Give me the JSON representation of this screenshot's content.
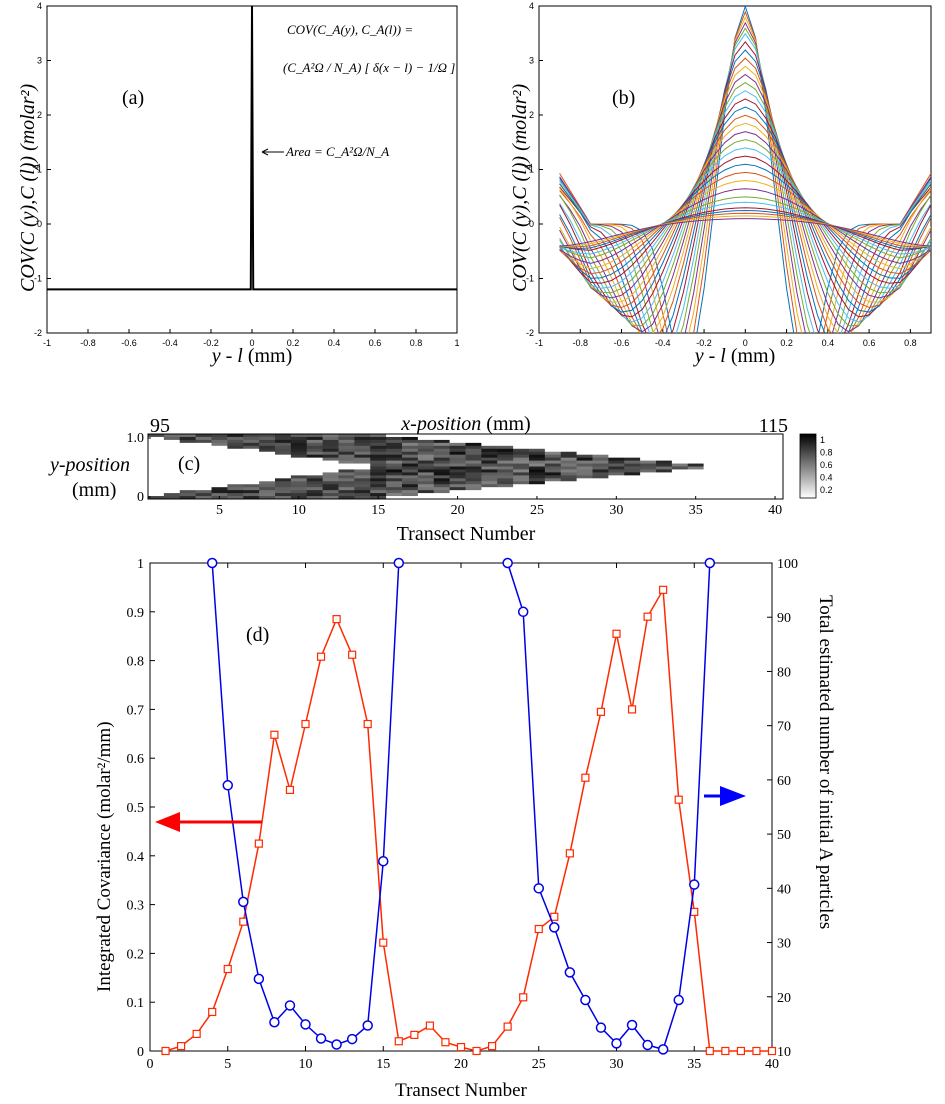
{
  "chart_data": [
    {
      "panel": "(a)",
      "type": "line",
      "xlabel_var": "y - l",
      "xlabel_unit": "(mm)",
      "ylabel": "COV(C (y),C (l)) (molar²)",
      "ylabel_sub": "A",
      "xlim": [
        -1,
        1
      ],
      "ylim": [
        -2,
        4
      ],
      "xticks": [
        "-1",
        "-0.8",
        "-0.6",
        "-0.4",
        "-0.2",
        "0",
        "0.2",
        "0.4",
        "0.6",
        "0.8",
        "1"
      ],
      "yticks": [
        "-2",
        "-1",
        "0",
        "1",
        "2",
        "3",
        "4"
      ],
      "baseline": -1.2,
      "spike_x": 0,
      "spike_peak": 4,
      "formula_lines": [
        "COV(C_A(y), C_A(l)) =",
        "(C_A²Ω / N_A) [ δ(x − l) − 1/Ω ]"
      ],
      "annotation": "Area = C_A²Ω/N_A",
      "line_color": "#000000"
    },
    {
      "panel": "(b)",
      "type": "line",
      "xlabel_var": "y - l",
      "xlabel_unit": "(mm)",
      "ylabel": "COV(C (y),C (l)) (molar²)",
      "ylabel_sub": "A",
      "xlim": [
        -1,
        1
      ],
      "ylim": [
        -2,
        4
      ],
      "xticks": [
        "-1",
        "-0.8",
        "-0.6",
        "-0.4",
        "-0.2",
        "0",
        "0.2",
        "0.4",
        "0.6",
        "0.8"
      ],
      "yticks": [
        "-2",
        "-1",
        "0",
        "1",
        "2",
        "3",
        "4"
      ],
      "x_range_data": [
        -0.9,
        0.9
      ],
      "series_peaks": [
        4.0,
        3.9,
        3.8,
        3.7,
        3.6,
        3.5,
        3.35,
        3.2,
        3.05,
        2.9,
        2.75,
        2.6,
        2.45,
        2.3,
        2.15,
        2.0,
        1.85,
        1.7,
        1.55,
        1.4,
        1.25,
        1.1,
        0.95,
        0.8,
        0.65,
        0.5,
        0.4,
        0.3,
        0.25,
        0.2,
        0.15,
        0.1
      ],
      "colors": [
        "#0072BD",
        "#D95319",
        "#EDB120",
        "#7E2F8E",
        "#77AC30",
        "#4DBEEE",
        "#A2142F"
      ]
    },
    {
      "panel": "(c)",
      "type": "heatmap",
      "top_axis_label": "x-position (mm)",
      "top_left_value": "95",
      "top_right_value": "115",
      "ylabel_line1": "y-position",
      "ylabel_line2": "(mm)",
      "yticks": [
        "0",
        "1.0"
      ],
      "xlabel": "Transect Number",
      "xticks": [
        "5",
        "10",
        "15",
        "20",
        "25",
        "30",
        "35",
        "40"
      ],
      "colorbar_ticks": [
        "1",
        "0.8",
        "0.6",
        "0.4",
        "0.2"
      ],
      "n_transects": 40,
      "n_rows": 22
    },
    {
      "panel": "(d)",
      "type": "line",
      "xlabel": "Transect Number",
      "ylabel_left": "Integrated Covariance (molar²/mm)",
      "ylabel_right": "Total estimated number of initial A particles",
      "xlim": [
        0,
        40
      ],
      "ylim_left": [
        0,
        1
      ],
      "ylim_right": [
        10,
        100
      ],
      "xticks": [
        "0",
        "5",
        "10",
        "15",
        "20",
        "25",
        "30",
        "35",
        "40"
      ],
      "yticks_left": [
        "0",
        "0.1",
        "0.2",
        "0.3",
        "0.4",
        "0.5",
        "0.6",
        "0.7",
        "0.8",
        "0.9",
        "1"
      ],
      "yticks_right": [
        "10",
        "20",
        "30",
        "40",
        "50",
        "60",
        "70",
        "80",
        "90",
        "100"
      ],
      "series": [
        {
          "axis": "left",
          "color": "#FF2A00",
          "marker": "square",
          "x": [
            1,
            2,
            3,
            4,
            5,
            6,
            7,
            8,
            9,
            10,
            11,
            12,
            13,
            14,
            15,
            16,
            17,
            18,
            19,
            20,
            21,
            22,
            23,
            24,
            25,
            26,
            27,
            28,
            29,
            30,
            31,
            32,
            33,
            34,
            35,
            36,
            37,
            38,
            39,
            40
          ],
          "y": [
            0.0,
            0.01,
            0.035,
            0.08,
            0.168,
            0.265,
            0.425,
            0.648,
            0.535,
            0.67,
            0.808,
            0.885,
            0.812,
            0.67,
            0.222,
            0.02,
            0.033,
            0.052,
            0.018,
            0.008,
            0.0,
            0.01,
            0.05,
            0.11,
            0.25,
            0.275,
            0.405,
            0.56,
            0.695,
            0.855,
            0.7,
            0.89,
            0.945,
            0.515,
            0.285,
            0.0,
            0.0,
            0.0,
            0.0,
            0.0
          ]
        },
        {
          "axis": "right",
          "color": "#0000E6",
          "marker": "circle",
          "x": [
            4,
            5,
            6,
            7,
            8,
            9,
            10,
            11,
            12,
            13,
            14,
            15,
            16,
            23,
            24,
            25,
            26,
            27,
            28,
            29,
            30,
            31,
            32,
            33,
            34,
            35,
            36
          ],
          "y": [
            100,
            59,
            37.5,
            23.3,
            15.3,
            18.4,
            14.9,
            12.3,
            11.2,
            12.2,
            14.7,
            45,
            100,
            100,
            91,
            40,
            32.8,
            24.5,
            19.4,
            14.3,
            11.4,
            14.8,
            11.1,
            10.3,
            19.4,
            40.7,
            100
          ]
        }
      ],
      "panel_label": "(d)",
      "arrow_left_color": "#FF0000",
      "arrow_right_color": "#0000FF"
    }
  ]
}
